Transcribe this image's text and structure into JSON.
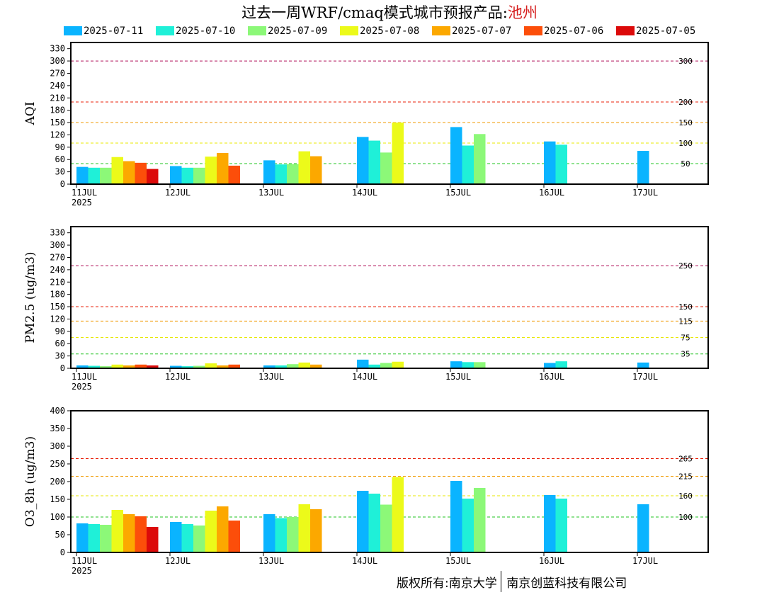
{
  "title": {
    "main": "过去一周WRF/cmaq模式城市预报产品:",
    "city": "池州"
  },
  "footer": {
    "left": "版权所有:南京大学",
    "right": "南京创蓝科技有限公司"
  },
  "chart_data": [
    {
      "type": "bar",
      "ylabel": "AQI",
      "ylim": [
        0,
        345
      ],
      "yticks": [
        0,
        30,
        60,
        90,
        120,
        150,
        180,
        210,
        240,
        270,
        300,
        330
      ],
      "categories": [
        "11JUL",
        "12JUL",
        "13JUL",
        "14JUL",
        "15JUL",
        "16JUL",
        "17JUL"
      ],
      "year_label": "2025",
      "thresholds": [
        {
          "value": 50,
          "label": "50",
          "color": "#22c422"
        },
        {
          "value": 100,
          "label": "100",
          "color": "#e8e800"
        },
        {
          "value": 150,
          "label": "150",
          "color": "#f09a00"
        },
        {
          "value": 200,
          "label": "200",
          "color": "#e8200a"
        },
        {
          "value": 300,
          "label": "300",
          "color": "#b0105a"
        }
      ],
      "series": [
        {
          "name": "2025-07-11",
          "color": "#0ab4ff",
          "values": [
            42,
            44,
            58,
            115,
            139,
            104,
            81
          ]
        },
        {
          "name": "2025-07-10",
          "color": "#1ff0d8",
          "values": [
            40,
            40,
            48,
            106,
            94,
            96,
            null
          ]
        },
        {
          "name": "2025-07-09",
          "color": "#8cf878",
          "values": [
            40,
            40,
            49,
            77,
            122,
            null,
            null
          ]
        },
        {
          "name": "2025-07-08",
          "color": "#ecfa1a",
          "values": [
            66,
            67,
            80,
            150,
            null,
            null,
            null
          ]
        },
        {
          "name": "2025-07-07",
          "color": "#fca800",
          "values": [
            56,
            76,
            68,
            null,
            null,
            null,
            null
          ]
        },
        {
          "name": "2025-07-06",
          "color": "#fc4e0a",
          "values": [
            52,
            45,
            null,
            null,
            null,
            null,
            null
          ]
        },
        {
          "name": "2025-07-05",
          "color": "#dc0a0a",
          "values": [
            37,
            null,
            null,
            null,
            null,
            null,
            null
          ]
        }
      ]
    },
    {
      "type": "bar",
      "ylabel": "PM2.5 (ug/m3)",
      "ylim": [
        0,
        345
      ],
      "yticks": [
        0,
        30,
        60,
        90,
        120,
        150,
        180,
        210,
        240,
        270,
        300,
        330
      ],
      "categories": [
        "11JUL",
        "12JUL",
        "13JUL",
        "14JUL",
        "15JUL",
        "16JUL",
        "17JUL"
      ],
      "year_label": "2025",
      "thresholds": [
        {
          "value": 35,
          "label": "35",
          "color": "#22c422"
        },
        {
          "value": 75,
          "label": "75",
          "color": "#e8e800"
        },
        {
          "value": 115,
          "label": "115",
          "color": "#f09a00"
        },
        {
          "value": 150,
          "label": "150",
          "color": "#e8200a"
        },
        {
          "value": 250,
          "label": "250",
          "color": "#b0105a"
        }
      ],
      "series": [
        {
          "name": "2025-07-11",
          "color": "#0ab4ff",
          "values": [
            7,
            6,
            7,
            21,
            17,
            13,
            14
          ]
        },
        {
          "name": "2025-07-10",
          "color": "#1ff0d8",
          "values": [
            6,
            5,
            7,
            9,
            15,
            17,
            null
          ]
        },
        {
          "name": "2025-07-09",
          "color": "#8cf878",
          "values": [
            5,
            6,
            10,
            13,
            15,
            null,
            null
          ]
        },
        {
          "name": "2025-07-08",
          "color": "#ecfa1a",
          "values": [
            9,
            12,
            14,
            16,
            null,
            null,
            null
          ]
        },
        {
          "name": "2025-07-07",
          "color": "#fca800",
          "values": [
            7,
            7,
            9,
            null,
            null,
            null,
            null
          ]
        },
        {
          "name": "2025-07-06",
          "color": "#fc4e0a",
          "values": [
            9,
            9,
            null,
            null,
            null,
            null,
            null
          ]
        },
        {
          "name": "2025-07-05",
          "color": "#dc0a0a",
          "values": [
            7,
            null,
            null,
            null,
            null,
            null,
            null
          ]
        }
      ]
    },
    {
      "type": "bar",
      "ylabel": "O3_8h (ug/m3)",
      "ylim": [
        0,
        400
      ],
      "yticks": [
        0,
        50,
        100,
        150,
        200,
        250,
        300,
        350,
        400
      ],
      "categories": [
        "11JUL",
        "12JUL",
        "13JUL",
        "14JUL",
        "15JUL",
        "16JUL",
        "17JUL"
      ],
      "year_label": "2025",
      "thresholds": [
        {
          "value": 100,
          "label": "100",
          "color": "#22c422"
        },
        {
          "value": 160,
          "label": "160",
          "color": "#e8e800"
        },
        {
          "value": 215,
          "label": "215",
          "color": "#f09a00"
        },
        {
          "value": 265,
          "label": "265",
          "color": "#e8200a"
        }
      ],
      "series": [
        {
          "name": "2025-07-11",
          "color": "#0ab4ff",
          "values": [
            82,
            86,
            108,
            174,
            202,
            162,
            136
          ]
        },
        {
          "name": "2025-07-10",
          "color": "#1ff0d8",
          "values": [
            80,
            80,
            97,
            166,
            152,
            152,
            null
          ]
        },
        {
          "name": "2025-07-09",
          "color": "#8cf878",
          "values": [
            78,
            76,
            100,
            135,
            182,
            null,
            null
          ]
        },
        {
          "name": "2025-07-08",
          "color": "#ecfa1a",
          "values": [
            120,
            118,
            136,
            213,
            null,
            null,
            null
          ]
        },
        {
          "name": "2025-07-07",
          "color": "#fca800",
          "values": [
            108,
            130,
            122,
            null,
            null,
            null,
            null
          ]
        },
        {
          "name": "2025-07-06",
          "color": "#fc4e0a",
          "values": [
            102,
            90,
            null,
            null,
            null,
            null,
            null
          ]
        },
        {
          "name": "2025-07-05",
          "color": "#dc0a0a",
          "values": [
            72,
            null,
            null,
            null,
            null,
            null,
            null
          ]
        }
      ]
    }
  ]
}
